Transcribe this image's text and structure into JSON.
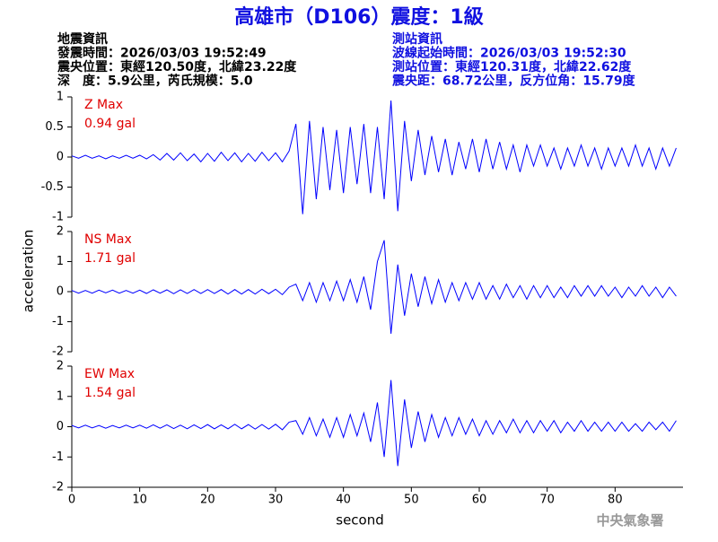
{
  "title": "高雄市（D106）震度：1級",
  "info_left": [
    "地震資訊",
    "發震時間：2026/03/03 19:52:49",
    "震央位置：東經120.50度，北緯23.22度",
    "深　度：5.9公里，芮氏規模：5.0"
  ],
  "info_right": [
    "測站資訊",
    "波線起始時間：2026/03/03 19:52:30",
    "測站位置：東經120.31度，北緯22.62度",
    "震央距：68.72公里，反方位角：15.79度"
  ],
  "ylabel": "acceleration",
  "watermark": "中央氣象署",
  "chart_data": [
    {
      "type": "line",
      "annotation": [
        "Z Max",
        "0.94 gal"
      ],
      "color": "#0000ff",
      "annotation_color": "#e00000",
      "xlim": [
        0,
        90
      ],
      "ylim": [
        -1,
        1
      ],
      "yticks": [
        {
          "value": -1,
          "label": "-1"
        },
        -0.5,
        0,
        0.5,
        1
      ],
      "x": [
        0,
        1,
        2,
        3,
        4,
        5,
        6,
        7,
        8,
        9,
        10,
        11,
        12,
        13,
        14,
        15,
        16,
        17,
        18,
        19,
        20,
        21,
        22,
        23,
        24,
        25,
        26,
        27,
        28,
        29,
        30,
        31,
        32,
        33,
        34,
        35,
        36,
        37,
        38,
        39,
        40,
        41,
        42,
        43,
        44,
        45,
        46,
        47,
        48,
        49,
        50,
        51,
        52,
        53,
        54,
        55,
        56,
        57,
        58,
        59,
        60,
        61,
        62,
        63,
        64,
        65,
        66,
        67,
        68,
        69,
        70,
        71,
        72,
        73,
        74,
        75,
        76,
        77,
        78,
        79,
        80,
        81,
        82,
        83,
        84,
        85,
        86,
        87,
        88,
        89
      ],
      "values": [
        0.02,
        -0.02,
        0.03,
        -0.02,
        0.02,
        -0.03,
        0.02,
        -0.02,
        0.03,
        -0.02,
        0.03,
        -0.03,
        0.04,
        -0.05,
        0.06,
        -0.05,
        0.07,
        -0.06,
        0.05,
        -0.08,
        0.06,
        -0.07,
        0.08,
        -0.06,
        0.07,
        -0.08,
        0.06,
        -0.07,
        0.08,
        -0.06,
        0.07,
        -0.08,
        0.1,
        0.55,
        -0.95,
        0.6,
        -0.7,
        0.5,
        -0.55,
        0.45,
        -0.6,
        0.5,
        -0.45,
        0.55,
        -0.6,
        0.5,
        -0.7,
        0.94,
        -0.9,
        0.6,
        -0.4,
        0.45,
        -0.3,
        0.35,
        -0.25,
        0.3,
        -0.3,
        0.25,
        -0.2,
        0.3,
        -0.25,
        0.3,
        -0.2,
        0.25,
        -0.2,
        0.2,
        -0.25,
        0.2,
        -0.15,
        0.2,
        -0.15,
        0.15,
        -0.2,
        0.15,
        -0.15,
        0.2,
        -0.15,
        0.15,
        -0.2,
        0.15,
        -0.15,
        0.15,
        -0.15,
        0.2,
        -0.15,
        0.15,
        -0.2,
        0.15,
        -0.15,
        0.15
      ]
    },
    {
      "type": "line",
      "annotation": [
        "NS Max",
        "1.71 gal"
      ],
      "color": "#0000ff",
      "annotation_color": "#e00000",
      "xlim": [
        0,
        90
      ],
      "ylim": [
        -2,
        2
      ],
      "yticks": [
        -2,
        -1,
        0,
        1,
        2
      ],
      "x": [
        0,
        1,
        2,
        3,
        4,
        5,
        6,
        7,
        8,
        9,
        10,
        11,
        12,
        13,
        14,
        15,
        16,
        17,
        18,
        19,
        20,
        21,
        22,
        23,
        24,
        25,
        26,
        27,
        28,
        29,
        30,
        31,
        32,
        33,
        34,
        35,
        36,
        37,
        38,
        39,
        40,
        41,
        42,
        43,
        44,
        45,
        46,
        47,
        48,
        49,
        50,
        51,
        52,
        53,
        54,
        55,
        56,
        57,
        58,
        59,
        60,
        61,
        62,
        63,
        64,
        65,
        66,
        67,
        68,
        69,
        70,
        71,
        72,
        73,
        74,
        75,
        76,
        77,
        78,
        79,
        80,
        81,
        82,
        83,
        84,
        85,
        86,
        87,
        88,
        89
      ],
      "values": [
        0.04,
        -0.05,
        0.04,
        -0.05,
        0.05,
        -0.04,
        0.05,
        -0.05,
        0.04,
        -0.05,
        0.05,
        -0.06,
        0.06,
        -0.05,
        0.06,
        -0.07,
        0.06,
        -0.06,
        0.07,
        -0.06,
        0.07,
        -0.06,
        0.07,
        -0.08,
        0.07,
        -0.08,
        0.07,
        -0.08,
        0.08,
        -0.07,
        0.08,
        -0.1,
        0.15,
        0.25,
        -0.3,
        0.3,
        -0.35,
        0.3,
        -0.3,
        0.35,
        -0.3,
        0.4,
        -0.35,
        0.5,
        -0.6,
        1.0,
        1.71,
        -1.4,
        0.9,
        -0.8,
        0.6,
        -0.5,
        0.5,
        -0.4,
        0.4,
        -0.35,
        0.3,
        -0.3,
        0.3,
        -0.25,
        0.3,
        -0.25,
        0.2,
        -0.25,
        0.25,
        -0.2,
        0.2,
        -0.25,
        0.2,
        -0.2,
        0.2,
        -0.2,
        0.15,
        -0.2,
        0.2,
        -0.15,
        0.2,
        -0.15,
        0.2,
        -0.15,
        0.15,
        -0.2,
        0.15,
        -0.15,
        0.2,
        -0.15,
        0.15,
        -0.2,
        0.15,
        -0.15
      ]
    },
    {
      "type": "line",
      "annotation": [
        "EW Max",
        "1.54 gal"
      ],
      "color": "#0000ff",
      "annotation_color": "#e00000",
      "xlim": [
        0,
        90
      ],
      "ylim": [
        -2,
        2
      ],
      "yticks": [
        -2,
        -1,
        0,
        1,
        2
      ],
      "xticks": [
        0,
        10,
        20,
        30,
        40,
        50,
        60,
        70,
        80
      ],
      "xlabel": "second",
      "x": [
        0,
        1,
        2,
        3,
        4,
        5,
        6,
        7,
        8,
        9,
        10,
        11,
        12,
        13,
        14,
        15,
        16,
        17,
        18,
        19,
        20,
        21,
        22,
        23,
        24,
        25,
        26,
        27,
        28,
        29,
        30,
        31,
        32,
        33,
        34,
        35,
        36,
        37,
        38,
        39,
        40,
        41,
        42,
        43,
        44,
        45,
        46,
        47,
        48,
        49,
        50,
        51,
        52,
        53,
        54,
        55,
        56,
        57,
        58,
        59,
        60,
        61,
        62,
        63,
        64,
        65,
        66,
        67,
        68,
        69,
        70,
        71,
        72,
        73,
        74,
        75,
        76,
        77,
        78,
        79,
        80,
        81,
        82,
        83,
        84,
        85,
        86,
        87,
        88,
        89
      ],
      "values": [
        0.04,
        -0.04,
        0.05,
        -0.04,
        0.04,
        -0.05,
        0.04,
        -0.04,
        0.05,
        -0.04,
        0.05,
        -0.05,
        0.06,
        -0.05,
        0.06,
        -0.06,
        0.05,
        -0.07,
        0.06,
        -0.06,
        0.07,
        -0.07,
        0.06,
        -0.07,
        0.08,
        -0.07,
        0.07,
        -0.08,
        0.07,
        -0.08,
        0.08,
        -0.1,
        0.15,
        0.2,
        -0.25,
        0.3,
        -0.3,
        0.25,
        -0.35,
        0.3,
        -0.35,
        0.4,
        -0.3,
        0.45,
        -0.5,
        0.8,
        -1.0,
        1.54,
        -1.3,
        0.9,
        -0.7,
        0.5,
        -0.5,
        0.4,
        -0.35,
        0.3,
        -0.3,
        0.3,
        -0.25,
        0.25,
        -0.3,
        0.2,
        -0.25,
        0.2,
        -0.2,
        0.25,
        -0.2,
        0.2,
        -0.2,
        0.2,
        -0.15,
        0.2,
        -0.2,
        0.15,
        -0.15,
        0.2,
        -0.15,
        0.15,
        -0.15,
        0.15,
        -0.15,
        0.15,
        -0.15,
        0.1,
        -0.15,
        0.15,
        -0.1,
        0.15,
        -0.15,
        0.2
      ]
    }
  ]
}
